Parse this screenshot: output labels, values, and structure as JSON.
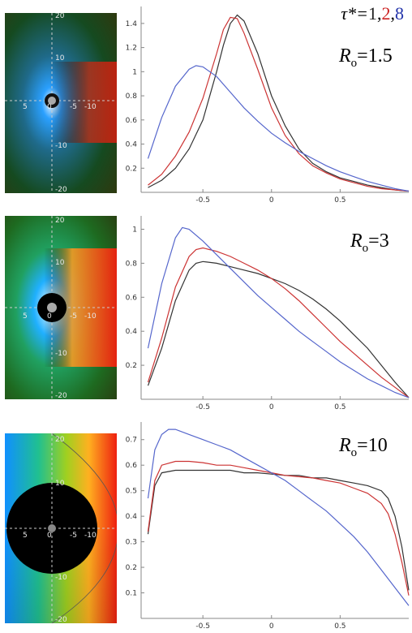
{
  "legend": {
    "tau_symbol": "τ*=",
    "v1": "1",
    "v2": "2",
    "v3": "8",
    "sep": ","
  },
  "colors": {
    "series1": "#333333",
    "series2": "#cc3333",
    "series3": "#5566cc"
  },
  "thumb_labels": {
    "pos20": "20",
    "pos10": "10",
    "pos5": "5",
    "zero": "0",
    "neg5": "-5",
    "neg10": "-10",
    "neg20": "-20"
  },
  "chart_data": [
    {
      "type": "line",
      "panel_label": {
        "prefix": "R",
        "sub": "o",
        "value": "=1.5"
      },
      "xlim": [
        -0.95,
        1.0
      ],
      "ylim": [
        0,
        1.5
      ],
      "xticks": [
        -0.5,
        0,
        0.5
      ],
      "xticklabels": [
        "-0.5",
        "0",
        "0.5"
      ],
      "yticks": [
        0.2,
        0.4,
        0.6,
        0.8,
        1.0,
        1.2,
        1.4
      ],
      "yticklabels": [
        "0.2",
        "0.4",
        "0.6",
        "0.8",
        "1",
        "1.2",
        "1.4"
      ],
      "series": [
        {
          "x": [
            -0.9,
            -0.8,
            -0.7,
            -0.6,
            -0.5,
            -0.4,
            -0.35,
            -0.3,
            -0.25,
            -0.2,
            -0.1,
            0,
            0.1,
            0.2,
            0.3,
            0.4,
            0.5,
            0.6,
            0.7,
            0.8,
            0.9,
            1.0
          ],
          "y": [
            0.04,
            0.1,
            0.2,
            0.36,
            0.6,
            1.0,
            1.22,
            1.4,
            1.47,
            1.42,
            1.15,
            0.8,
            0.55,
            0.36,
            0.24,
            0.17,
            0.12,
            0.09,
            0.06,
            0.04,
            0.02,
            0.01
          ]
        },
        {
          "x": [
            -0.9,
            -0.8,
            -0.7,
            -0.6,
            -0.5,
            -0.4,
            -0.35,
            -0.3,
            -0.25,
            -0.2,
            -0.1,
            0,
            0.1,
            0.2,
            0.3,
            0.4,
            0.5,
            0.6,
            0.7,
            0.8,
            0.9,
            1.0
          ],
          "y": [
            0.06,
            0.15,
            0.3,
            0.5,
            0.78,
            1.15,
            1.35,
            1.45,
            1.44,
            1.32,
            1.02,
            0.7,
            0.47,
            0.32,
            0.22,
            0.16,
            0.11,
            0.08,
            0.05,
            0.03,
            0.02,
            0.01
          ]
        },
        {
          "x": [
            -0.9,
            -0.8,
            -0.7,
            -0.6,
            -0.55,
            -0.5,
            -0.4,
            -0.3,
            -0.2,
            -0.1,
            0,
            0.1,
            0.2,
            0.3,
            0.4,
            0.5,
            0.6,
            0.7,
            0.8,
            0.9,
            1.0
          ],
          "y": [
            0.28,
            0.62,
            0.88,
            1.02,
            1.05,
            1.04,
            0.96,
            0.83,
            0.7,
            0.59,
            0.49,
            0.41,
            0.34,
            0.28,
            0.22,
            0.17,
            0.13,
            0.09,
            0.06,
            0.03,
            0.01
          ]
        }
      ]
    },
    {
      "type": "line",
      "panel_label": {
        "prefix": "R",
        "sub": "o",
        "value": "=3"
      },
      "xlim": [
        -0.95,
        1.0
      ],
      "ylim": [
        0,
        1.05
      ],
      "xticks": [
        -0.5,
        0,
        0.5
      ],
      "xticklabels": [
        "-0.5",
        "0",
        "0.5"
      ],
      "yticks": [
        0.2,
        0.4,
        0.6,
        0.8,
        1.0
      ],
      "yticklabels": [
        "0.2",
        "0.4",
        "0.6",
        "0.8",
        "1"
      ],
      "series": [
        {
          "x": [
            -0.9,
            -0.8,
            -0.7,
            -0.6,
            -0.55,
            -0.5,
            -0.4,
            -0.3,
            -0.2,
            -0.1,
            0,
            0.1,
            0.2,
            0.3,
            0.4,
            0.5,
            0.6,
            0.7,
            0.8,
            0.9,
            1.0
          ],
          "y": [
            0.08,
            0.3,
            0.58,
            0.76,
            0.8,
            0.81,
            0.8,
            0.78,
            0.76,
            0.74,
            0.71,
            0.68,
            0.64,
            0.59,
            0.53,
            0.46,
            0.38,
            0.3,
            0.2,
            0.1,
            0.01
          ]
        },
        {
          "x": [
            -0.9,
            -0.8,
            -0.7,
            -0.6,
            -0.55,
            -0.5,
            -0.4,
            -0.3,
            -0.2,
            -0.1,
            0,
            0.1,
            0.2,
            0.3,
            0.4,
            0.5,
            0.6,
            0.7,
            0.8,
            0.9,
            1.0
          ],
          "y": [
            0.1,
            0.36,
            0.66,
            0.84,
            0.88,
            0.89,
            0.87,
            0.84,
            0.8,
            0.76,
            0.71,
            0.65,
            0.58,
            0.5,
            0.42,
            0.34,
            0.27,
            0.2,
            0.13,
            0.07,
            0.01
          ]
        },
        {
          "x": [
            -0.9,
            -0.8,
            -0.7,
            -0.65,
            -0.6,
            -0.5,
            -0.4,
            -0.3,
            -0.2,
            -0.1,
            0,
            0.1,
            0.2,
            0.3,
            0.4,
            0.5,
            0.6,
            0.7,
            0.8,
            0.9,
            1.0
          ],
          "y": [
            0.3,
            0.68,
            0.95,
            1.01,
            1.0,
            0.93,
            0.85,
            0.77,
            0.69,
            0.61,
            0.54,
            0.47,
            0.4,
            0.34,
            0.28,
            0.22,
            0.17,
            0.12,
            0.08,
            0.04,
            0.01
          ]
        }
      ]
    },
    {
      "type": "line",
      "panel_label": {
        "prefix": "R",
        "sub": "o",
        "value": "=10"
      },
      "xlim": [
        -0.95,
        1.0
      ],
      "ylim": [
        0,
        0.75
      ],
      "xticks": [
        -0.5,
        0,
        0.5
      ],
      "xticklabels": [
        "-0.5",
        "0",
        "0.5"
      ],
      "yticks": [
        0.1,
        0.2,
        0.3,
        0.4,
        0.5,
        0.6,
        0.7
      ],
      "yticklabels": [
        "0.1",
        "0.2",
        "0.3",
        "0.4",
        "0.5",
        "0.6",
        "0.7"
      ],
      "series": [
        {
          "x": [
            -0.9,
            -0.85,
            -0.8,
            -0.7,
            -0.6,
            -0.5,
            -0.4,
            -0.3,
            -0.2,
            -0.1,
            0,
            0.1,
            0.2,
            0.3,
            0.4,
            0.5,
            0.6,
            0.7,
            0.8,
            0.85,
            0.9,
            0.95,
            1.0
          ],
          "y": [
            0.33,
            0.52,
            0.57,
            0.58,
            0.58,
            0.58,
            0.58,
            0.58,
            0.57,
            0.57,
            0.565,
            0.56,
            0.56,
            0.55,
            0.55,
            0.54,
            0.53,
            0.52,
            0.5,
            0.47,
            0.4,
            0.28,
            0.11
          ]
        },
        {
          "x": [
            -0.9,
            -0.85,
            -0.8,
            -0.7,
            -0.6,
            -0.5,
            -0.4,
            -0.3,
            -0.2,
            -0.1,
            0,
            0.1,
            0.2,
            0.3,
            0.4,
            0.5,
            0.6,
            0.7,
            0.8,
            0.85,
            0.9,
            0.95,
            1.0
          ],
          "y": [
            0.34,
            0.54,
            0.6,
            0.615,
            0.615,
            0.61,
            0.6,
            0.6,
            0.59,
            0.58,
            0.57,
            0.56,
            0.555,
            0.55,
            0.54,
            0.53,
            0.51,
            0.49,
            0.45,
            0.41,
            0.33,
            0.22,
            0.09
          ]
        },
        {
          "x": [
            -0.9,
            -0.85,
            -0.8,
            -0.75,
            -0.7,
            -0.6,
            -0.5,
            -0.4,
            -0.3,
            -0.2,
            -0.1,
            0,
            0.1,
            0.2,
            0.3,
            0.4,
            0.5,
            0.6,
            0.7,
            0.8,
            0.9,
            1.0
          ],
          "y": [
            0.47,
            0.66,
            0.72,
            0.74,
            0.74,
            0.72,
            0.7,
            0.68,
            0.66,
            0.63,
            0.6,
            0.57,
            0.54,
            0.5,
            0.46,
            0.42,
            0.37,
            0.32,
            0.26,
            0.19,
            0.12,
            0.05
          ]
        }
      ]
    }
  ]
}
